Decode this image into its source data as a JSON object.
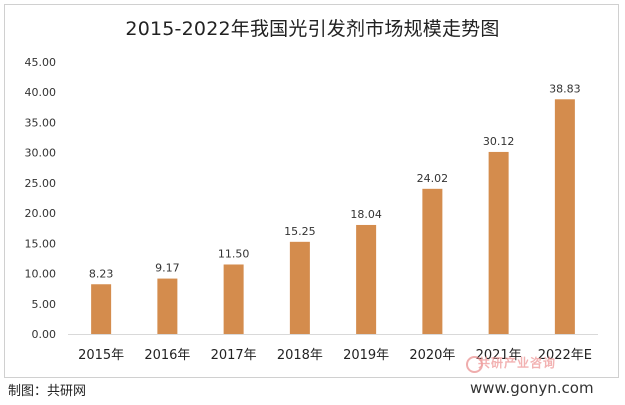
{
  "chart_data": {
    "type": "bar",
    "title": "2015-2022年我国光引发剂市场规模走势图",
    "categories": [
      "2015年",
      "2016年",
      "2017年",
      "2018年",
      "2019年",
      "2020年",
      "2021年",
      "2022年E"
    ],
    "values": [
      8.23,
      9.17,
      11.5,
      15.25,
      18.04,
      24.02,
      30.12,
      38.83
    ],
    "value_labels": [
      "8.23",
      "9.17",
      "11.50",
      "15.25",
      "18.04",
      "24.02",
      "30.12",
      "38.83"
    ],
    "yticks": [
      "0.00",
      "5.00",
      "10.00",
      "15.00",
      "20.00",
      "25.00",
      "30.00",
      "35.00",
      "40.00",
      "45.00"
    ],
    "ylim": [
      0,
      45
    ],
    "xlabel": "",
    "ylabel": "",
    "grid": false,
    "bar_color": "#d48c4d"
  },
  "footer": {
    "credit": "制图：共研网",
    "watermark_cn": "共研产业咨询",
    "watermark_url": "www.gonyn.com"
  }
}
